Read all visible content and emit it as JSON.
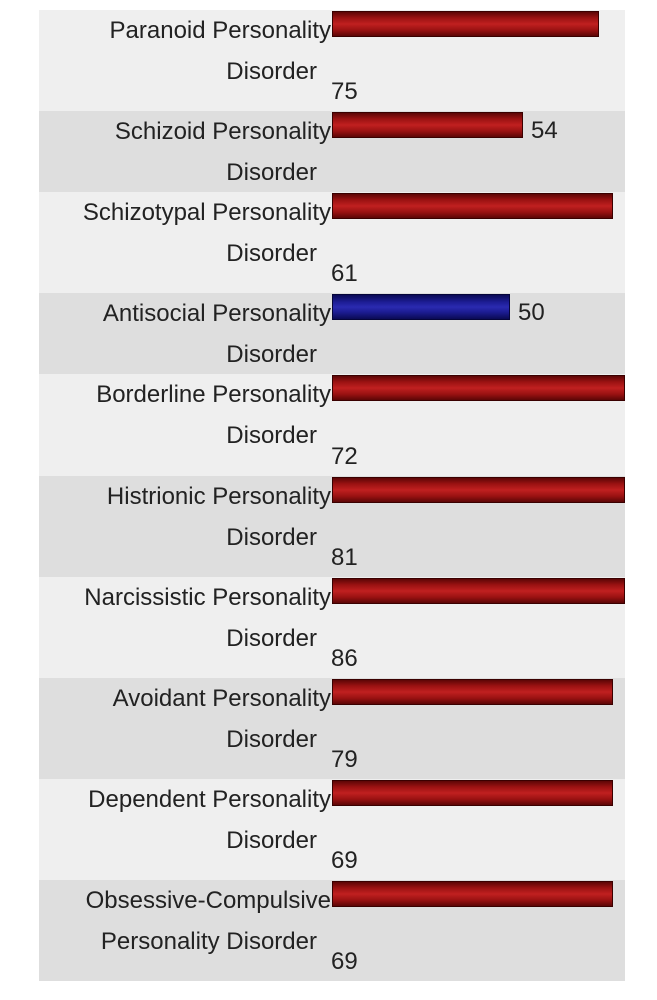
{
  "chart_data": {
    "type": "bar",
    "orientation": "horizontal",
    "categories": [
      [
        "Paranoid Personality",
        "Disorder"
      ],
      [
        "Schizoid Personality",
        "Disorder"
      ],
      [
        "Schizotypal Personality",
        "Disorder"
      ],
      [
        "Antisocial Personality",
        "Disorder"
      ],
      [
        "Borderline Personality",
        "Disorder"
      ],
      [
        "Histrionic Personality",
        "Disorder"
      ],
      [
        "Narcissistic Personality",
        "Disorder"
      ],
      [
        "Avoidant Personality",
        "Disorder"
      ],
      [
        "Dependent Personality",
        "Disorder"
      ],
      [
        "Obsessive-Compulsive",
        "Personality Disorder"
      ]
    ],
    "values": [
      75,
      54,
      61,
      50,
      72,
      81,
      86,
      79,
      69,
      69
    ],
    "bar_colors": [
      "#a31515",
      "#a31515",
      "#a31515",
      "#1d1d95",
      "#a31515",
      "#a31515",
      "#a31515",
      "#a31515",
      "#a31515",
      "#a31515"
    ],
    "grid": false,
    "legend": "none"
  }
}
